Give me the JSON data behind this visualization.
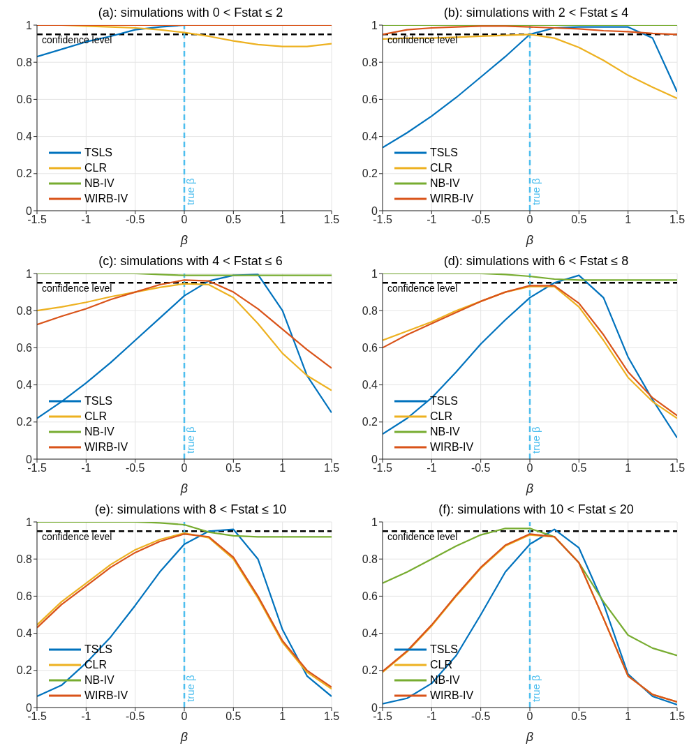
{
  "chart_data": [
    {
      "type": "line",
      "title": "(a): simulations with 0 < Fstat ≤ 2",
      "xlabel": "β",
      "x": [
        -1.5,
        -1.25,
        -1,
        -0.75,
        -0.5,
        -0.25,
        0,
        0.25,
        0.5,
        0.75,
        1,
        1.25,
        1.5
      ],
      "xlim": [
        -1.5,
        1.5
      ],
      "xticks": [
        -1.5,
        -1,
        -0.5,
        0,
        0.5,
        1,
        1.5
      ],
      "ylim": [
        0,
        1
      ],
      "yticks": [
        0,
        0.2,
        0.4,
        0.6,
        0.8,
        1
      ],
      "grid": true,
      "legend": "bottom left",
      "line_style": "solid",
      "marker": "none",
      "ref_lines": [
        {
          "axis": "y",
          "value": 0.95,
          "label": "confidence level",
          "color": "#000000",
          "line_style": "dashed"
        },
        {
          "axis": "x",
          "value": 0,
          "label": "true β",
          "color": "#4dbeee",
          "line_style": "dashed"
        }
      ],
      "series": [
        {
          "name": "TSLS",
          "color": "#0072bd",
          "values": [
            0.83,
            0.87,
            0.91,
            0.94,
            0.975,
            0.99,
            1,
            null,
            null,
            null,
            null,
            null,
            null
          ]
        },
        {
          "name": "CLR",
          "color": "#edb120",
          "values": [
            1,
            1,
            0.995,
            0.99,
            0.985,
            0.975,
            0.96,
            0.94,
            0.915,
            0.895,
            0.885,
            0.885,
            0.9
          ]
        },
        {
          "name": "NB-IV",
          "color": "#77ac30",
          "values": [
            null,
            null,
            null,
            null,
            null,
            null,
            null,
            null,
            null,
            null,
            null,
            null,
            null
          ]
        },
        {
          "name": "WIRB-IV",
          "color": "#d95319",
          "values": [
            1,
            1,
            1,
            1,
            1,
            1,
            1,
            1,
            1,
            1,
            1,
            1,
            1
          ]
        }
      ]
    },
    {
      "type": "line",
      "title": "(b): simulations with 2 < Fstat ≤ 4",
      "xlabel": "β",
      "x": [
        -1.5,
        -1.25,
        -1,
        -0.75,
        -0.5,
        -0.25,
        0,
        0.25,
        0.5,
        0.75,
        1,
        1.25,
        1.5
      ],
      "xlim": [
        -1.5,
        1.5
      ],
      "xticks": [
        -1.5,
        -1,
        -0.5,
        0,
        0.5,
        1,
        1.5
      ],
      "ylim": [
        0,
        1
      ],
      "yticks": [
        0,
        0.2,
        0.4,
        0.6,
        0.8,
        1
      ],
      "grid": true,
      "legend": "bottom left",
      "line_style": "solid",
      "marker": "none",
      "ref_lines": [
        {
          "axis": "y",
          "value": 0.95,
          "label": "confidence level",
          "color": "#000000",
          "line_style": "dashed"
        },
        {
          "axis": "x",
          "value": 0,
          "label": "true β",
          "color": "#4dbeee",
          "line_style": "dashed"
        }
      ],
      "series": [
        {
          "name": "TSLS",
          "color": "#0072bd",
          "values": [
            0.34,
            0.42,
            0.51,
            0.61,
            0.72,
            0.83,
            0.95,
            0.985,
            0.99,
            0.99,
            0.99,
            0.93,
            0.64
          ]
        },
        {
          "name": "CLR",
          "color": "#edb120",
          "values": [
            0.925,
            0.93,
            0.93,
            0.935,
            0.94,
            0.945,
            0.95,
            0.93,
            0.88,
            0.81,
            0.73,
            0.665,
            0.605
          ]
        },
        {
          "name": "NB-IV",
          "color": "#77ac30",
          "values": [
            1,
            1,
            1,
            1,
            1,
            1,
            1,
            1,
            1,
            1,
            1,
            1,
            1
          ]
        },
        {
          "name": "WIRB-IV",
          "color": "#d95319",
          "values": [
            0.95,
            0.975,
            0.985,
            0.99,
            0.995,
            0.995,
            0.99,
            0.985,
            0.98,
            0.97,
            0.965,
            0.955,
            0.95
          ]
        }
      ]
    },
    {
      "type": "line",
      "title": "(c): simulations with 4 < Fstat ≤ 6",
      "xlabel": "β",
      "x": [
        -1.5,
        -1.25,
        -1,
        -0.75,
        -0.5,
        -0.25,
        0,
        0.25,
        0.5,
        0.75,
        1,
        1.25,
        1.5
      ],
      "xlim": [
        -1.5,
        1.5
      ],
      "xticks": [
        -1.5,
        -1,
        -0.5,
        0,
        0.5,
        1,
        1.5
      ],
      "ylim": [
        0,
        1
      ],
      "yticks": [
        0,
        0.2,
        0.4,
        0.6,
        0.8,
        1
      ],
      "grid": true,
      "legend": "bottom left",
      "line_style": "solid",
      "marker": "none",
      "ref_lines": [
        {
          "axis": "y",
          "value": 0.95,
          "label": "confidence level",
          "color": "#000000",
          "line_style": "dashed"
        },
        {
          "axis": "x",
          "value": 0,
          "label": "true β",
          "color": "#4dbeee",
          "line_style": "dashed"
        }
      ],
      "series": [
        {
          "name": "TSLS",
          "color": "#0072bd",
          "values": [
            0.22,
            0.31,
            0.41,
            0.52,
            0.64,
            0.76,
            0.88,
            0.96,
            0.99,
            0.995,
            0.8,
            0.45,
            0.25
          ]
        },
        {
          "name": "CLR",
          "color": "#edb120",
          "values": [
            0.8,
            0.82,
            0.845,
            0.875,
            0.9,
            0.925,
            0.945,
            0.94,
            0.87,
            0.73,
            0.57,
            0.45,
            0.37
          ]
        },
        {
          "name": "NB-IV",
          "color": "#77ac30",
          "values": [
            1,
            1,
            1,
            1,
            1,
            0.995,
            0.99,
            0.99,
            0.99,
            0.99,
            0.99,
            0.99,
            0.99
          ]
        },
        {
          "name": "WIRB-IV",
          "color": "#d95319",
          "values": [
            0.725,
            0.77,
            0.81,
            0.86,
            0.9,
            0.94,
            0.965,
            0.96,
            0.9,
            0.81,
            0.7,
            0.59,
            0.49
          ]
        }
      ]
    },
    {
      "type": "line",
      "title": "(d): simulations with 6 < Fstat ≤ 8",
      "xlabel": "β",
      "x": [
        -1.5,
        -1.25,
        -1,
        -0.75,
        -0.5,
        -0.25,
        0,
        0.25,
        0.5,
        0.75,
        1,
        1.25,
        1.5
      ],
      "xlim": [
        -1.5,
        1.5
      ],
      "xticks": [
        -1.5,
        -1,
        -0.5,
        0,
        0.5,
        1,
        1.5
      ],
      "ylim": [
        0,
        1
      ],
      "yticks": [
        0,
        0.2,
        0.4,
        0.6,
        0.8,
        1
      ],
      "grid": true,
      "legend": "bottom left",
      "line_style": "solid",
      "marker": "none",
      "ref_lines": [
        {
          "axis": "y",
          "value": 0.95,
          "label": "confidence level",
          "color": "#000000",
          "line_style": "dashed"
        },
        {
          "axis": "x",
          "value": 0,
          "label": "true β",
          "color": "#4dbeee",
          "line_style": "dashed"
        }
      ],
      "series": [
        {
          "name": "TSLS",
          "color": "#0072bd",
          "values": [
            0.135,
            0.22,
            0.33,
            0.47,
            0.62,
            0.75,
            0.87,
            0.95,
            0.99,
            0.87,
            0.55,
            0.32,
            0.115
          ]
        },
        {
          "name": "CLR",
          "color": "#edb120",
          "values": [
            0.64,
            0.69,
            0.74,
            0.8,
            0.85,
            0.9,
            0.93,
            0.93,
            0.82,
            0.64,
            0.44,
            0.31,
            0.22
          ]
        },
        {
          "name": "NB-IV",
          "color": "#77ac30",
          "values": [
            1,
            1,
            1,
            1,
            1,
            0.995,
            0.985,
            0.97,
            0.965,
            0.965,
            0.965,
            0.965,
            0.965
          ]
        },
        {
          "name": "WIRB-IV",
          "color": "#d95319",
          "values": [
            0.6,
            0.67,
            0.73,
            0.79,
            0.85,
            0.9,
            0.935,
            0.935,
            0.84,
            0.67,
            0.47,
            0.33,
            0.235
          ]
        }
      ]
    },
    {
      "type": "line",
      "title": "(e): simulations with 8 < Fstat ≤ 10",
      "xlabel": "β",
      "x": [
        -1.5,
        -1.25,
        -1,
        -0.75,
        -0.5,
        -0.25,
        0,
        0.25,
        0.5,
        0.75,
        1,
        1.25,
        1.5
      ],
      "xlim": [
        -1.5,
        1.5
      ],
      "xticks": [
        -1.5,
        -1,
        -0.5,
        0,
        0.5,
        1,
        1.5
      ],
      "ylim": [
        0,
        1
      ],
      "yticks": [
        0,
        0.2,
        0.4,
        0.6,
        0.8,
        1
      ],
      "grid": true,
      "legend": "bottom left",
      "line_style": "solid",
      "marker": "none",
      "ref_lines": [
        {
          "axis": "y",
          "value": 0.95,
          "label": "confidence level",
          "color": "#000000",
          "line_style": "dashed"
        },
        {
          "axis": "x",
          "value": 0,
          "label": "true β",
          "color": "#4dbeee",
          "line_style": "dashed"
        }
      ],
      "series": [
        {
          "name": "TSLS",
          "color": "#0072bd",
          "values": [
            0.06,
            0.12,
            0.24,
            0.38,
            0.55,
            0.73,
            0.88,
            0.95,
            0.96,
            0.8,
            0.42,
            0.17,
            0.06
          ]
        },
        {
          "name": "CLR",
          "color": "#edb120",
          "values": [
            0.445,
            0.57,
            0.67,
            0.77,
            0.85,
            0.905,
            0.94,
            0.915,
            0.8,
            0.59,
            0.35,
            0.19,
            0.1
          ]
        },
        {
          "name": "NB-IV",
          "color": "#77ac30",
          "values": [
            1,
            1,
            1,
            1,
            1,
            0.995,
            0.985,
            0.945,
            0.925,
            0.92,
            0.92,
            0.92,
            0.92
          ]
        },
        {
          "name": "WIRB-IV",
          "color": "#d95319",
          "values": [
            0.43,
            0.555,
            0.655,
            0.755,
            0.835,
            0.895,
            0.935,
            0.92,
            0.81,
            0.6,
            0.36,
            0.2,
            0.11
          ]
        }
      ]
    },
    {
      "type": "line",
      "title": "(f): simulations with 10 < Fstat ≤ 20",
      "xlabel": "β",
      "x": [
        -1.5,
        -1.25,
        -1,
        -0.75,
        -0.5,
        -0.25,
        0,
        0.25,
        0.5,
        0.75,
        1,
        1.25,
        1.5
      ],
      "xlim": [
        -1.5,
        1.5
      ],
      "xticks": [
        -1.5,
        -1,
        -0.5,
        0,
        0.5,
        1,
        1.5
      ],
      "ylim": [
        0,
        1
      ],
      "yticks": [
        0,
        0.2,
        0.4,
        0.6,
        0.8,
        1
      ],
      "grid": true,
      "legend": "bottom left",
      "line_style": "solid",
      "marker": "none",
      "ref_lines": [
        {
          "axis": "y",
          "value": 0.95,
          "label": "confidence level",
          "color": "#000000",
          "line_style": "dashed"
        },
        {
          "axis": "x",
          "value": 0,
          "label": "true β",
          "color": "#4dbeee",
          "line_style": "dashed"
        }
      ],
      "series": [
        {
          "name": "TSLS",
          "color": "#0072bd",
          "values": [
            0.02,
            0.05,
            0.13,
            0.28,
            0.5,
            0.73,
            0.88,
            0.96,
            0.86,
            0.56,
            0.18,
            0.06,
            0.015
          ]
        },
        {
          "name": "CLR",
          "color": "#edb120",
          "values": [
            0.19,
            0.3,
            0.44,
            0.6,
            0.75,
            0.87,
            0.93,
            0.92,
            0.78,
            0.48,
            0.17,
            0.07,
            0.03
          ]
        },
        {
          "name": "NB-IV",
          "color": "#77ac30",
          "values": [
            0.67,
            0.73,
            0.8,
            0.87,
            0.93,
            0.965,
            0.965,
            0.92,
            0.78,
            0.57,
            0.39,
            0.32,
            0.28
          ]
        },
        {
          "name": "WIRB-IV",
          "color": "#d95319",
          "values": [
            0.195,
            0.305,
            0.445,
            0.605,
            0.755,
            0.875,
            0.935,
            0.92,
            0.78,
            0.48,
            0.17,
            0.07,
            0.03
          ]
        }
      ]
    }
  ]
}
